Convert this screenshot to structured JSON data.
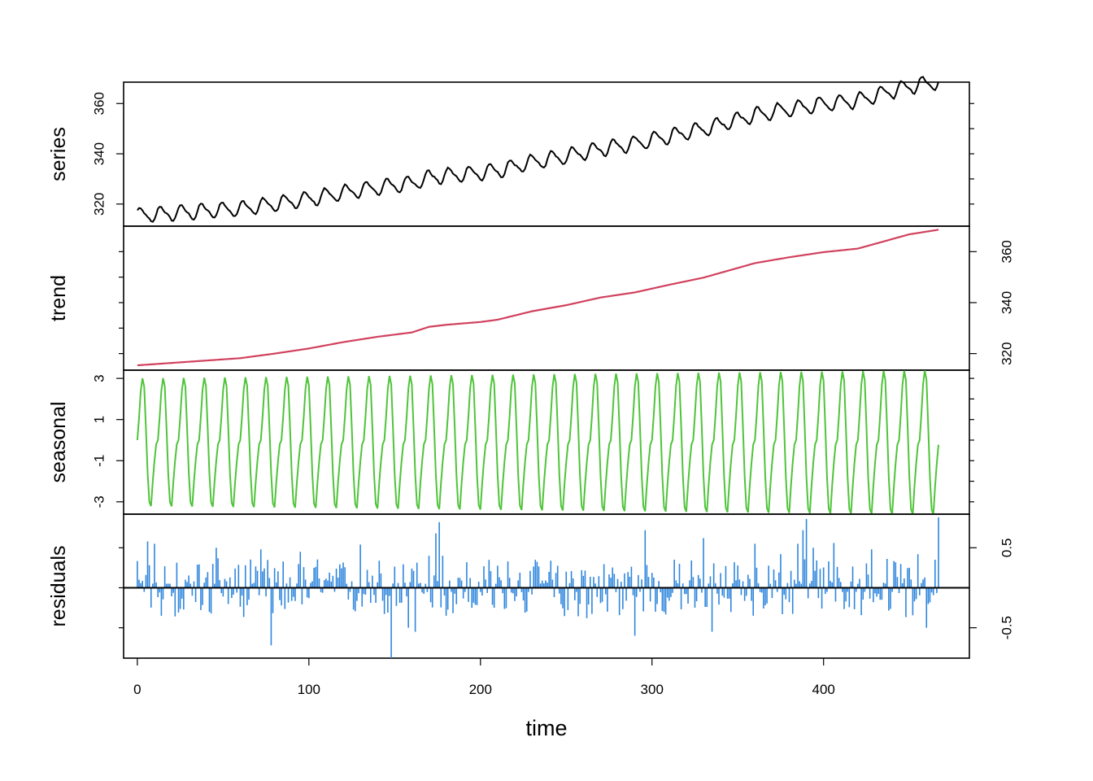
{
  "chart_data": {
    "type": "line",
    "title": "",
    "xlabel": "time",
    "xlim": [
      -8,
      485
    ],
    "x_ticks": [
      0,
      100,
      200,
      300,
      400
    ],
    "x_tick_labels": [
      "0",
      "100",
      "200",
      "300",
      "400"
    ],
    "n_points": 468,
    "panels": [
      {
        "name": "series",
        "ylabel": "series",
        "type": "line",
        "color": "#000000",
        "axis_side": "left",
        "ylim": [
          311.2,
          368.5
        ],
        "y_ticks": [
          320,
          340,
          360
        ],
        "y_tick_labels": [
          "320",
          "340",
          "360"
        ],
        "minor_ticks_right": true,
        "start_value": 315.4,
        "end_value": 365.0,
        "trend_points": [
          [
            0,
            315.4
          ],
          [
            60,
            318.2
          ],
          [
            80,
            320.0
          ],
          [
            100,
            322.0
          ],
          [
            120,
            324.5
          ],
          [
            140,
            326.6
          ],
          [
            160,
            328.3
          ],
          [
            170,
            330.5
          ],
          [
            180,
            331.3
          ],
          [
            200,
            332.4
          ],
          [
            210,
            333.3
          ],
          [
            230,
            336.6
          ],
          [
            250,
            339.0
          ],
          [
            270,
            342.0
          ],
          [
            290,
            344.0
          ],
          [
            310,
            347.0
          ],
          [
            330,
            349.8
          ],
          [
            360,
            355.5
          ],
          [
            380,
            357.8
          ],
          [
            400,
            359.8
          ],
          [
            420,
            361.2
          ],
          [
            450,
            366.8
          ],
          [
            467,
            368.6
          ]
        ],
        "seasonal_amplitude": 3.2,
        "period": 12
      },
      {
        "name": "trend",
        "ylabel": "trend",
        "type": "line",
        "color": "#d1415e",
        "axis_side": "right",
        "ylim": [
          313.5,
          370.0
        ],
        "y_ticks": [
          320,
          340,
          360
        ],
        "y_tick_labels": [
          "320",
          "340",
          "360"
        ],
        "minor_ticks_left": true,
        "points": [
          [
            0,
            315.4
          ],
          [
            60,
            318.2
          ],
          [
            80,
            320.0
          ],
          [
            100,
            322.0
          ],
          [
            120,
            324.5
          ],
          [
            140,
            326.6
          ],
          [
            160,
            328.3
          ],
          [
            170,
            330.5
          ],
          [
            180,
            331.3
          ],
          [
            200,
            332.4
          ],
          [
            210,
            333.3
          ],
          [
            230,
            336.6
          ],
          [
            250,
            339.0
          ],
          [
            270,
            342.0
          ],
          [
            290,
            344.0
          ],
          [
            310,
            347.0
          ],
          [
            330,
            349.8
          ],
          [
            360,
            355.5
          ],
          [
            380,
            357.8
          ],
          [
            400,
            359.8
          ],
          [
            420,
            361.2
          ],
          [
            450,
            366.8
          ],
          [
            467,
            368.6
          ]
        ]
      },
      {
        "name": "seasonal",
        "ylabel": "seasonal",
        "type": "line",
        "color": "#4fc43a",
        "axis_side": "left",
        "ylim": [
          -3.6,
          3.4
        ],
        "y_ticks": [
          -3,
          -1,
          1,
          3
        ],
        "y_tick_labels": [
          "-3",
          "-1",
          "1",
          "3"
        ],
        "minor_ticks_right": true,
        "pattern": [
          0.0,
          1.1,
          2.4,
          3.0,
          2.6,
          0.6,
          -1.6,
          -3.0,
          -3.2,
          -2.0,
          -1.0,
          -0.2
        ],
        "amplitude_start": 1.0,
        "amplitude_end": 1.13
      },
      {
        "name": "residuals",
        "ylabel": "residuals",
        "type": "bar",
        "color": "#2f86dd",
        "axis_side": "right",
        "ylim": [
          -0.88,
          0.92
        ],
        "y_ticks": [
          -0.5,
          0.5
        ],
        "y_tick_labels": [
          "-0.5",
          "0.5"
        ],
        "minor_ticks_left": true,
        "baseline": 0,
        "notable": [
          [
            6,
            0.58
          ],
          [
            10,
            0.55
          ],
          [
            14,
            -0.35
          ],
          [
            46,
            0.5
          ],
          [
            72,
            0.48
          ],
          [
            78,
            -0.72
          ],
          [
            95,
            0.45
          ],
          [
            130,
            0.54
          ],
          [
            148,
            -0.88
          ],
          [
            158,
            -0.5
          ],
          [
            162,
            -0.55
          ],
          [
            170,
            0.4
          ],
          [
            174,
            0.68
          ],
          [
            176,
            0.82
          ],
          [
            178,
            0.4
          ],
          [
            180,
            -0.35
          ],
          [
            262,
            -0.38
          ],
          [
            290,
            -0.6
          ],
          [
            296,
            0.72
          ],
          [
            330,
            0.62
          ],
          [
            335,
            -0.55
          ],
          [
            360,
            0.55
          ],
          [
            375,
            0.42
          ],
          [
            385,
            0.55
          ],
          [
            388,
            0.72
          ],
          [
            390,
            0.86
          ],
          [
            394,
            0.5
          ],
          [
            406,
            0.56
          ],
          [
            428,
            0.48
          ],
          [
            455,
            0.42
          ],
          [
            460,
            -0.5
          ],
          [
            467,
            0.88
          ]
        ]
      }
    ]
  }
}
